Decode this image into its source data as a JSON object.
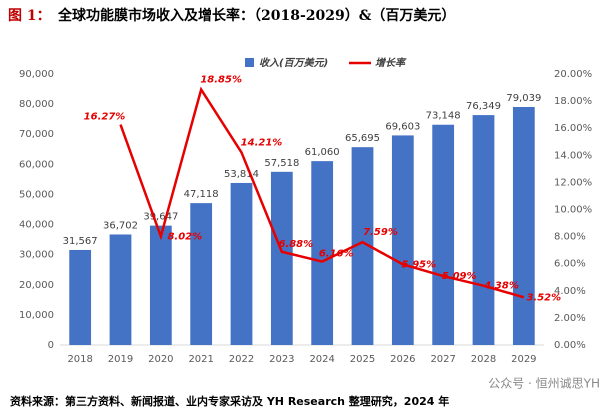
{
  "title_prefix": "图 1：",
  "chart_data": {
    "type": "bar",
    "title": "全球功能膜市场收入及增长率：（2018-2029）&（百万美元）",
    "categories": [
      "2018",
      "2019",
      "2020",
      "2021",
      "2022",
      "2023",
      "2024",
      "2025",
      "2026",
      "2027",
      "2028",
      "2029"
    ],
    "series": [
      {
        "name": "收入(百万美元)",
        "type": "bar",
        "color": "#4472c4",
        "values": [
          31567,
          36702,
          39647,
          47118,
          53814,
          57518,
          61060,
          65695,
          69603,
          73148,
          76349,
          79039
        ],
        "value_labels": [
          "31,567",
          "36,702",
          "39,647",
          "47,118",
          "53,814",
          "57,518",
          "61,060",
          "65,695",
          "69,603",
          "73,148",
          "76,349",
          "79,039"
        ]
      },
      {
        "name": "增长率",
        "type": "line",
        "axis": "y2",
        "color": "#e60000",
        "values": [
          null,
          16.27,
          8.02,
          18.85,
          14.21,
          6.88,
          6.16,
          7.59,
          5.95,
          5.09,
          4.38,
          3.52
        ],
        "value_labels": [
          null,
          "16.27%",
          "8.02%",
          "18.85%",
          "14.21%",
          "6.88%",
          "6.16%",
          "7.59%",
          "5.95%",
          "5.09%",
          "4.38%",
          "3.52%"
        ]
      }
    ],
    "ylim": [
      0,
      90000
    ],
    "yticks": [
      0,
      {
        "value": 10000,
        "label": "10,000"
      },
      {
        "value": 20000,
        "label": "20,000"
      },
      {
        "value": 30000,
        "label": "30,000"
      },
      {
        "value": 40000,
        "label": "40,000"
      },
      {
        "value": 50000,
        "label": "50,000"
      },
      {
        "value": 60000,
        "label": "60,000"
      },
      {
        "value": 70000,
        "label": "70,000"
      },
      {
        "value": 80000,
        "label": "80,000"
      },
      {
        "value": 90000,
        "label": "90,000"
      }
    ],
    "y2lim": [
      0,
      20
    ],
    "y2ticks": [
      {
        "value": 0,
        "label": "0.00%"
      },
      {
        "value": 2,
        "label": "2.00%"
      },
      {
        "value": 4,
        "label": "4.00%"
      },
      {
        "value": 6,
        "label": "6.00%"
      },
      {
        "value": 8,
        "label": "8.00%"
      },
      {
        "value": 10,
        "label": "10.00%"
      },
      {
        "value": 12,
        "label": "12.00%"
      },
      {
        "value": 14,
        "label": "14.00%"
      },
      {
        "value": 16,
        "label": "16.00%"
      },
      {
        "value": 18,
        "label": "18.00%"
      },
      {
        "value": 20,
        "label": "20.00%"
      }
    ],
    "legend": "top",
    "grid": false
  },
  "source": "资料来源：第三方资料、新闻报道、业内专家采访及 YH Research 整理研究，2024 年",
  "watermark": "公众号 · 恒州诚思YH"
}
